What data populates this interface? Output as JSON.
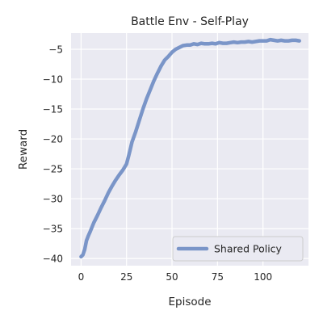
{
  "chart_data": {
    "type": "line",
    "title": "Battle Env - Self-Play",
    "xlabel": "Episode",
    "ylabel": "Reward",
    "xlim": [
      -5.5,
      125
    ],
    "ylim": [
      -41.2,
      -2.3
    ],
    "xticks": [
      0,
      25,
      50,
      75,
      100
    ],
    "yticks": [
      -40,
      -35,
      -30,
      -25,
      -20,
      -15,
      -10,
      -5
    ],
    "xtick_labels": [
      "0",
      "25",
      "50",
      "75",
      "100"
    ],
    "ytick_labels": [
      "−40",
      "−35",
      "−30",
      "−25",
      "−20",
      "−15",
      "−10",
      "−5"
    ],
    "grid": true,
    "legend_position": "lower-right",
    "background_color": "#eaeaf2",
    "grid_color": "#ffffff",
    "series": [
      {
        "name": "Shared Policy",
        "color": "#7a95c8",
        "x": [
          0,
          1,
          2,
          3,
          4,
          5,
          7,
          9,
          11,
          13,
          15,
          17,
          19,
          21,
          23,
          25,
          26,
          27,
          28,
          30,
          32,
          34,
          36,
          38,
          40,
          42,
          44,
          46,
          48,
          50,
          52,
          54,
          56,
          58,
          60,
          62,
          64,
          66,
          68,
          70,
          72,
          74,
          76,
          78,
          80,
          82,
          84,
          86,
          88,
          90,
          92,
          94,
          96,
          98,
          100,
          102,
          104,
          106,
          108,
          110,
          112,
          114,
          116,
          118,
          120
        ],
        "y": [
          -39.7,
          -39.4,
          -38.5,
          -37.0,
          -36.2,
          -35.5,
          -34.0,
          -32.8,
          -31.5,
          -30.3,
          -29.0,
          -27.9,
          -26.9,
          -26.0,
          -25.2,
          -24.2,
          -23.0,
          -21.8,
          -20.5,
          -18.8,
          -16.9,
          -15.0,
          -13.3,
          -11.8,
          -10.3,
          -9.0,
          -7.8,
          -6.8,
          -6.2,
          -5.5,
          -5.0,
          -4.7,
          -4.4,
          -4.3,
          -4.3,
          -4.1,
          -4.2,
          -4.0,
          -4.1,
          -4.1,
          -4.0,
          -4.1,
          -3.9,
          -4.0,
          -4.0,
          -3.9,
          -3.8,
          -3.9,
          -3.8,
          -3.8,
          -3.7,
          -3.8,
          -3.7,
          -3.6,
          -3.6,
          -3.6,
          -3.4,
          -3.5,
          -3.6,
          -3.5,
          -3.6,
          -3.6,
          -3.5,
          -3.5,
          -3.6
        ]
      }
    ]
  }
}
